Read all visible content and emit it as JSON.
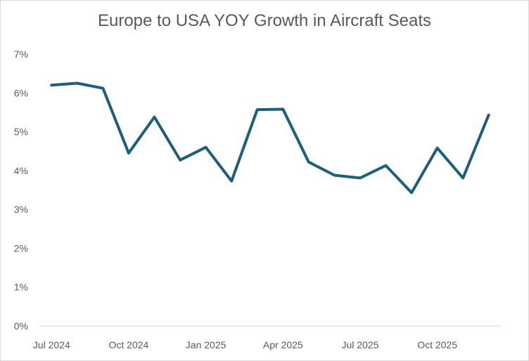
{
  "chart_data": {
    "type": "line",
    "title": "Europe to USA YOY Growth in Aircraft Seats",
    "xlabel": "",
    "ylabel": "",
    "x": [
      "Jul 2024",
      "Aug 2024",
      "Sep 2024",
      "Oct 2024",
      "Nov 2024",
      "Dec 2024",
      "Jan 2025",
      "Feb 2025",
      "Mar 2025",
      "Apr 2025",
      "May 2025",
      "Jun 2025",
      "Jul 2025",
      "Aug 2025",
      "Sep 2025",
      "Oct 2025",
      "Nov 2025",
      "Dec 2025"
    ],
    "series": [
      {
        "values": [
          6.2,
          6.25,
          6.12,
          4.45,
          5.38,
          4.27,
          4.6,
          3.73,
          5.57,
          5.58,
          4.22,
          3.88,
          3.81,
          4.13,
          3.43,
          4.58,
          3.81,
          5.43
        ]
      }
    ],
    "x_tick_labels": [
      "Jul 2024",
      "Oct 2024",
      "Jan 2025",
      "Apr 2025",
      "Jul 2025",
      "Oct 2025"
    ],
    "y_tick_labels": [
      "0%",
      "1%",
      "2%",
      "3%",
      "4%",
      "5%",
      "6%",
      "7%"
    ],
    "ylim": [
      0,
      7
    ],
    "grid": false,
    "line_color": "#1b5f7e",
    "axis_color": "#d9d9d9"
  }
}
